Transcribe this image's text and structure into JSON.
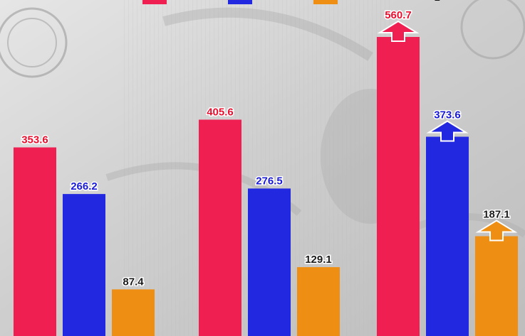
{
  "chart_data": {
    "type": "bar",
    "categories": [
      "",
      "",
      ""
    ],
    "series": [
      {
        "color": "#ef1f52",
        "values": [
          353.6,
          405.6,
          560.7
        ],
        "label_color": "#e8102f",
        "arrows": [
          false,
          false,
          true
        ]
      },
      {
        "color": "#2227e0",
        "values": [
          266.2,
          276.5,
          373.6
        ],
        "label_color": "#1a1ad8",
        "arrows": [
          false,
          false,
          true
        ]
      },
      {
        "color": "#ee8f14",
        "values": [
          87.4,
          129.1,
          187.1
        ],
        "label_color": "#1c1c1c",
        "arrows": [
          false,
          false,
          true
        ]
      }
    ],
    "value_labels": [
      [
        "353.6",
        "405.6",
        "560.7"
      ],
      [
        "266.2",
        "276.5",
        "373.6"
      ],
      [
        "87.4",
        "129.1",
        "187.1"
      ]
    ],
    "ylim": [
      0,
      620
    ],
    "grid": false,
    "legend": {
      "placement": "top",
      "partially_visible": true,
      "visible_text": "2"
    }
  }
}
